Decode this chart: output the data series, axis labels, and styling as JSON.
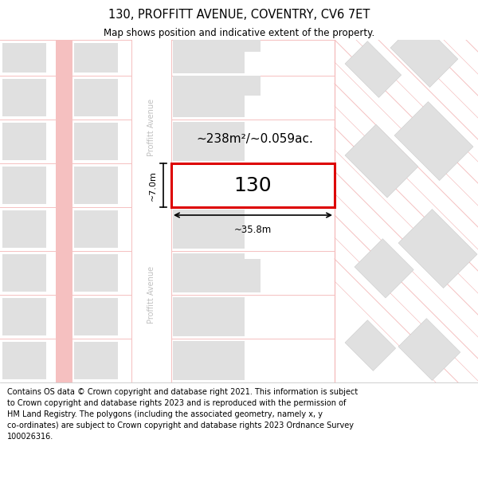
{
  "title": "130, PROFFITT AVENUE, COVENTRY, CV6 7ET",
  "subtitle": "Map shows position and indicative extent of the property.",
  "footer_lines": [
    "Contains OS data © Crown copyright and database right 2021. This information is subject to Crown copyright and database rights 2023 and is reproduced with the permission of",
    "HM Land Registry. The polygons (including the associated geometry, namely x, y",
    "co-ordinates) are subject to Crown copyright and database rights 2023 Ordnance Survey",
    "100026316."
  ],
  "area_text": "~238m²/~0.059ac.",
  "width_text": "~35.8m",
  "height_text": "~7.0m",
  "number_label": "130",
  "building_fill": "#e0e0e0",
  "road_color": "#f5c0c0",
  "highlight_stroke": "#dd0000",
  "highlight_fill": "#ffffff",
  "street_color": "#c0c0c0",
  "title_fontsize": 10.5,
  "subtitle_fontsize": 8.5,
  "footer_fontsize": 7.0,
  "label_fontsize": 8
}
